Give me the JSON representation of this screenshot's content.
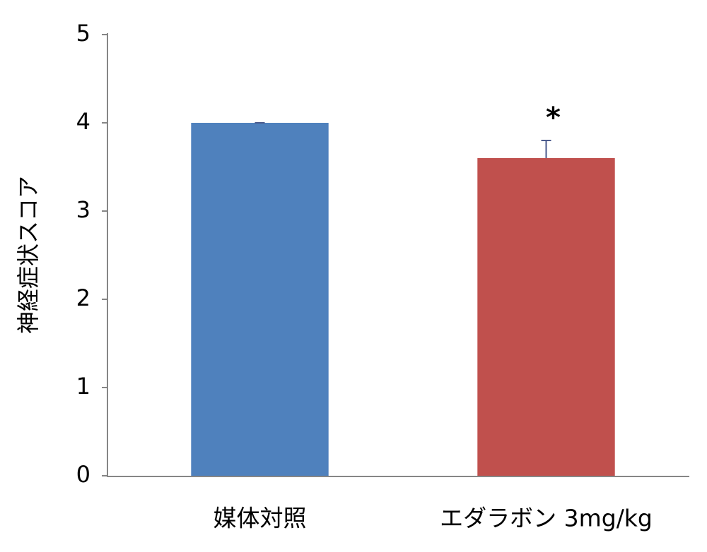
{
  "chart_data": {
    "type": "bar",
    "y_label": "神経症状スコア",
    "categories": [
      "媒体対照",
      "エダラボン 3mg/kg"
    ],
    "values": [
      4.0,
      3.6
    ],
    "errors": [
      0,
      0.2
    ],
    "colors": [
      "#4f81bd",
      "#c0504d"
    ],
    "error_color": "#4a5a8c",
    "significance": [
      null,
      "*"
    ],
    "ylim": [
      0,
      5
    ],
    "yticks": [
      0,
      1,
      2,
      3,
      4,
      5
    ],
    "grid": false
  }
}
